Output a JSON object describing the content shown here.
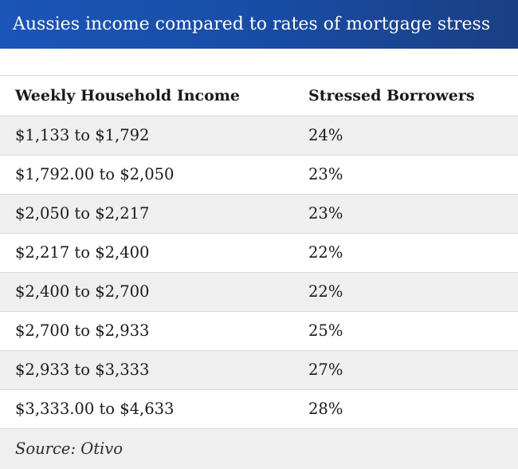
{
  "title": "Aussies income compared to rates of mortgage stress",
  "columns": [
    "Weekly Household Income",
    "Stressed Borrowers"
  ],
  "rows": [
    {
      "income": "$1,133 to $1,792",
      "stressed": "24%"
    },
    {
      "income": "$1,792.00 to $2,050",
      "stressed": "23%"
    },
    {
      "income": "$2,050 to $2,217",
      "stressed": "23%"
    },
    {
      "income": "$2,217 to $2,400",
      "stressed": "22%"
    },
    {
      "income": "$2,400 to $2,700",
      "stressed": "22%"
    },
    {
      "income": "$2,700 to $2,933",
      "stressed": "25%"
    },
    {
      "income": "$2,933 to $3,333",
      "stressed": "27%"
    },
    {
      "income": "$3,333.00 to $4,633",
      "stressed": "28%"
    }
  ],
  "source": "Source: Otivo",
  "colors": {
    "title_bar": "#184ea9",
    "stripe": "#efefef",
    "text": "#1a1a1a"
  }
}
